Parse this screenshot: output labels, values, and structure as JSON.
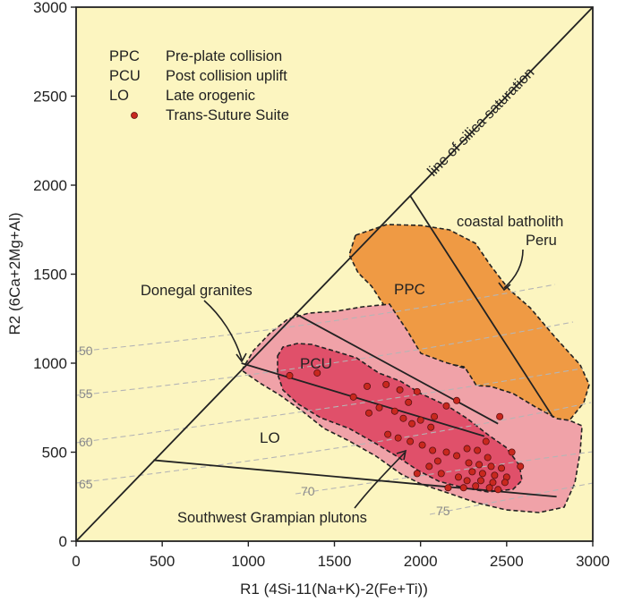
{
  "chart_data": {
    "type": "scatter",
    "xlabel": "R1 (4Si-11(Na+K)-2(Fe+Ti))",
    "ylabel": "R2 (6Ca+2Mg+Al)",
    "xlim": [
      0,
      3000
    ],
    "ylim": [
      0,
      3000
    ],
    "x_ticks": [
      "0",
      "500",
      "1000",
      "1500",
      "2000",
      "2500",
      "3000"
    ],
    "y_ticks": [
      "0",
      "500",
      "1000",
      "1500",
      "2000",
      "2500",
      "3000"
    ],
    "background": "#fcf5c0",
    "legend": {
      "placement": "top-left",
      "entries": [
        {
          "abbr": "PPC",
          "text": "Pre-plate collision"
        },
        {
          "abbr": "PCU",
          "text": "Post collision uplift"
        },
        {
          "abbr": "LO",
          "text": "Late orogenic"
        },
        {
          "abbr": "",
          "text": "Trans-Suture Suite",
          "marker": "dot"
        }
      ]
    },
    "region_labels": {
      "ppc": "PPC",
      "pcu": "PCU",
      "lo": "LO"
    },
    "annotations": {
      "silica_line": "line of silica saturation",
      "coastal_line1": "coastal batholith",
      "coastal_line2": "Peru",
      "donegal": "Donegal granites",
      "grampian": "Southwest Grampian plutons"
    },
    "contour_labels": [
      "50",
      "55",
      "60",
      "65",
      "70",
      "75"
    ],
    "colors": {
      "ppc": "#ef9a44",
      "lo": "#f0a2a8",
      "pcu": "#e0506a",
      "points": "#c8281e",
      "contours": "#b5b5b5"
    },
    "boundary_lines": [
      {
        "name": "ppc-boundary",
        "points": [
          [
            1940,
            1940
          ],
          [
            2770,
            695
          ]
        ]
      },
      {
        "name": "pcu-ppc-boundary",
        "points": [
          [
            1270,
            1280
          ],
          [
            2450,
            660
          ]
        ]
      },
      {
        "name": "lo-pcu-boundary",
        "points": [
          [
            960,
            1000
          ],
          [
            2370,
            590
          ]
        ]
      },
      {
        "name": "lo-lower-boundary",
        "points": [
          [
            450,
            455
          ],
          [
            2790,
            250
          ]
        ]
      }
    ],
    "series": [
      {
        "name": "Trans-Suture Suite",
        "points": [
          [
            1240,
            930
          ],
          [
            1400,
            945
          ],
          [
            1610,
            810
          ],
          [
            1690,
            870
          ],
          [
            1800,
            880
          ],
          [
            1880,
            850
          ],
          [
            1930,
            780
          ],
          [
            1980,
            840
          ],
          [
            1760,
            750
          ],
          [
            1850,
            730
          ],
          [
            1900,
            690
          ],
          [
            1950,
            660
          ],
          [
            2000,
            680
          ],
          [
            2080,
            700
          ],
          [
            2150,
            760
          ],
          [
            2210,
            790
          ],
          [
            2060,
            640
          ],
          [
            1810,
            600
          ],
          [
            1870,
            580
          ],
          [
            1940,
            560
          ],
          [
            2010,
            540
          ],
          [
            2070,
            510
          ],
          [
            2150,
            500
          ],
          [
            2210,
            480
          ],
          [
            2270,
            520
          ],
          [
            2330,
            510
          ],
          [
            2390,
            470
          ],
          [
            2280,
            440
          ],
          [
            2340,
            430
          ],
          [
            2410,
            420
          ],
          [
            2470,
            410
          ],
          [
            2300,
            390
          ],
          [
            2360,
            380
          ],
          [
            2430,
            370
          ],
          [
            2500,
            360
          ],
          [
            2220,
            360
          ],
          [
            2270,
            340
          ],
          [
            2350,
            340
          ],
          [
            2420,
            330
          ],
          [
            2490,
            330
          ],
          [
            2160,
            300
          ],
          [
            2250,
            300
          ],
          [
            2320,
            310
          ],
          [
            2400,
            300
          ],
          [
            2450,
            290
          ],
          [
            2120,
            380
          ],
          [
            1980,
            380
          ],
          [
            2050,
            420
          ],
          [
            2100,
            450
          ],
          [
            2530,
            500
          ],
          [
            2580,
            420
          ],
          [
            2460,
            700
          ],
          [
            2380,
            560
          ],
          [
            1700,
            720
          ]
        ]
      }
    ]
  }
}
